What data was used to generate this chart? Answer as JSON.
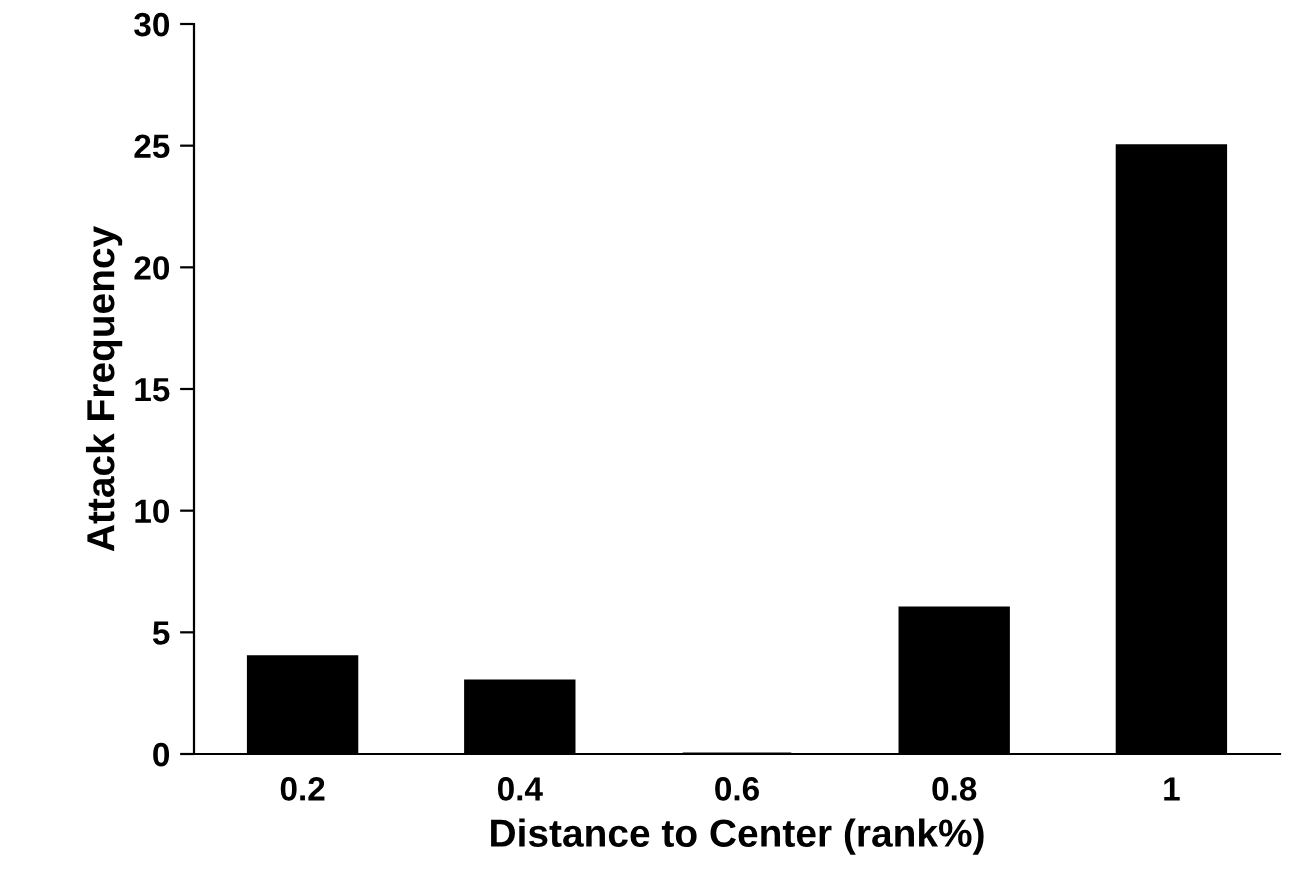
{
  "chart_data": {
    "type": "bar",
    "xlabel": "Distance to Center (rank%)",
    "ylabel": "Attack Frequency",
    "categories": [
      "0.2",
      "0.4",
      "0.6",
      "0.8",
      "1"
    ],
    "values": [
      4,
      3,
      0,
      6,
      25
    ],
    "color": "#000000",
    "ylim": [
      0,
      30
    ],
    "yticks": [
      0,
      5,
      10,
      15,
      20,
      25,
      30
    ],
    "grid": false,
    "legend": false
  }
}
